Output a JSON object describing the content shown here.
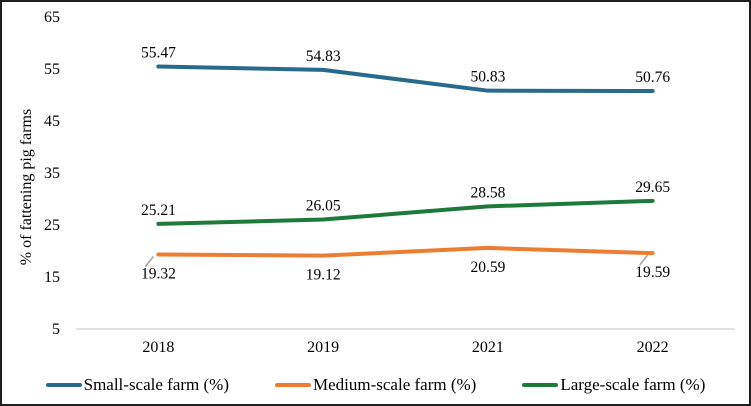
{
  "chart_data": {
    "type": "line",
    "ylabel": "% of fattening pig farms",
    "xlabel": "",
    "categories": [
      "2018",
      "2019",
      "2021",
      "2022"
    ],
    "series": [
      {
        "name": "Small-scale farm (%)",
        "values": [
          55.47,
          54.83,
          50.83,
          50.76
        ],
        "color": "#276A8C",
        "label_position": "above"
      },
      {
        "name": "Medium-scale farm (%)",
        "values": [
          19.32,
          19.12,
          20.59,
          19.59
        ],
        "color": "#ED7D31",
        "label_position": "below"
      },
      {
        "name": "Large-scale farm (%)",
        "values": [
          25.21,
          26.05,
          28.58,
          29.65
        ],
        "color": "#1E7A3C",
        "label_position": "above"
      }
    ],
    "yticks": [
      5,
      15,
      25,
      35,
      45,
      55,
      65
    ],
    "ylim": [
      5,
      65
    ],
    "grid": false,
    "legend_position": "bottom",
    "axis_color": "#D9D9D9",
    "leader_color": "#A6A6A6",
    "text_color": "#000000",
    "label_leaders": [
      {
        "series": 1,
        "index": 0
      },
      {
        "series": 1,
        "index": 3
      }
    ]
  }
}
